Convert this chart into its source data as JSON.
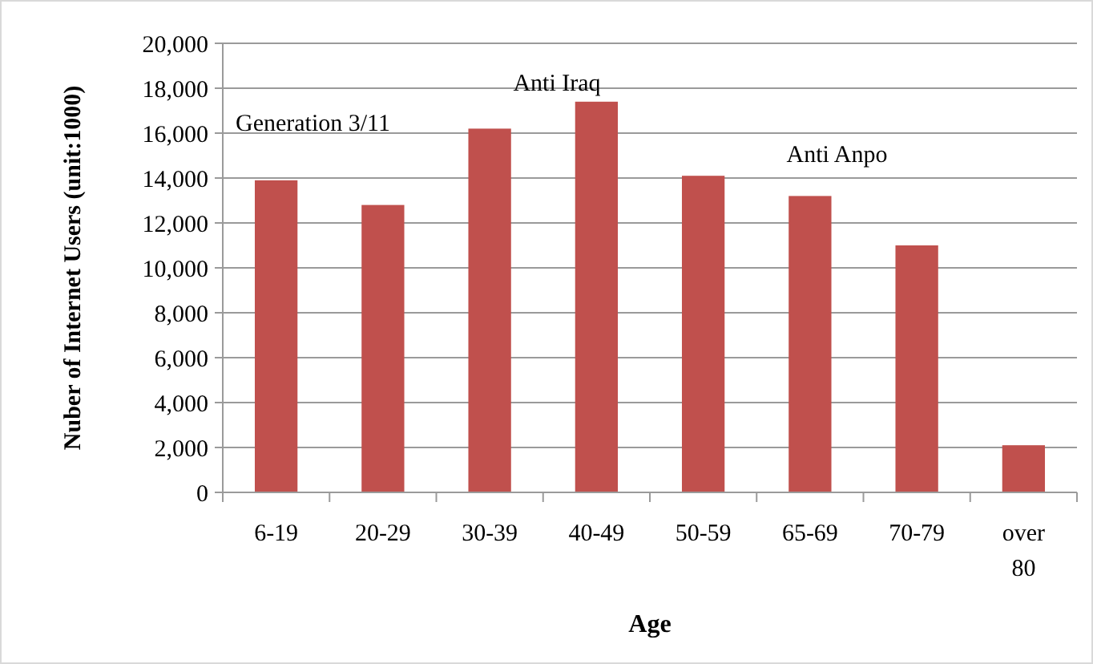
{
  "chart_data": {
    "type": "bar",
    "xlabel": "Age",
    "ylabel": "Nuber of Internet Users (unit:1000)",
    "categories": [
      "6-19",
      "20-29",
      "30-39",
      "40-49",
      "50-59",
      "65-69",
      "70-79",
      "over 80"
    ],
    "values": [
      13900,
      12800,
      16200,
      17400,
      14100,
      13200,
      11000,
      2100
    ],
    "color": "#c0504d",
    "ylim": [
      0,
      20000
    ],
    "yticks": [
      {
        "value": 0,
        "label": "0"
      },
      {
        "value": 2000,
        "label": "2,000"
      },
      {
        "value": 4000,
        "label": "4,000"
      },
      {
        "value": 6000,
        "label": "6,000"
      },
      {
        "value": 8000,
        "label": "8,000"
      },
      {
        "value": 10000,
        "label": "10,000"
      },
      {
        "value": 12000,
        "label": "12,000"
      },
      {
        "value": 14000,
        "label": "14,000"
      },
      {
        "value": 16000,
        "label": "16,000"
      },
      {
        "value": 18000,
        "label": "18,000"
      },
      {
        "value": 20000,
        "label": "20,000"
      }
    ],
    "grid": "y",
    "annotations": [
      "Generation 3/11",
      "Anti Iraq",
      "Anti Anpo"
    ]
  }
}
